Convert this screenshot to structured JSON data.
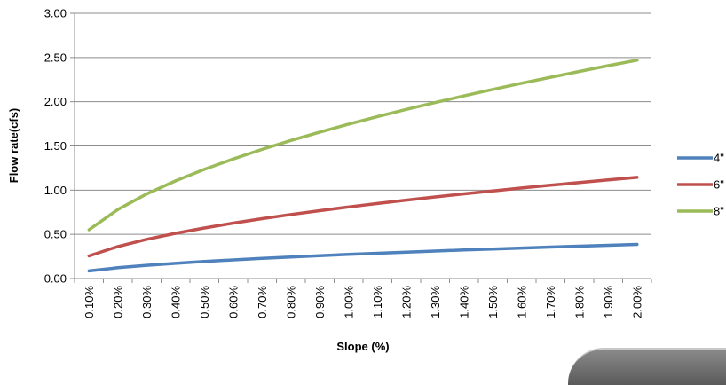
{
  "chart_data": {
    "type": "line",
    "title": "",
    "xlabel": "Slope (%)",
    "ylabel": "Flow rate(cfs)",
    "categories": [
      "0.10%",
      "0.20%",
      "0.30%",
      "0.40%",
      "0.50%",
      "0.60%",
      "0.70%",
      "0.80%",
      "0.90%",
      "1.00%",
      "1.10%",
      "1.20%",
      "1.30%",
      "1.40%",
      "1.50%",
      "1.60%",
      "1.70%",
      "1.80%",
      "1.90%",
      "2.00%"
    ],
    "yticks": [
      "0.00",
      "0.50",
      "1.00",
      "1.50",
      "2.00",
      "2.50",
      "3.00"
    ],
    "ylim": [
      0,
      3
    ],
    "grid": true,
    "legend_position": "right",
    "series": [
      {
        "name": "4\"",
        "color": "#4F81BD",
        "values": [
          0.086,
          0.122,
          0.149,
          0.172,
          0.193,
          0.211,
          0.228,
          0.244,
          0.259,
          0.273,
          0.286,
          0.299,
          0.311,
          0.323,
          0.334,
          0.345,
          0.356,
          0.366,
          0.376,
          0.386
        ]
      },
      {
        "name": "6\"",
        "color": "#C0504D",
        "values": [
          0.256,
          0.362,
          0.443,
          0.512,
          0.572,
          0.627,
          0.677,
          0.724,
          0.768,
          0.81,
          0.849,
          0.887,
          0.923,
          0.958,
          0.991,
          1.024,
          1.056,
          1.086,
          1.116,
          1.145
        ]
      },
      {
        "name": "8\"",
        "color": "#9BBB59",
        "values": [
          0.552,
          0.781,
          0.957,
          1.105,
          1.235,
          1.353,
          1.461,
          1.562,
          1.657,
          1.747,
          1.832,
          1.913,
          1.991,
          2.066,
          2.139,
          2.209,
          2.277,
          2.343,
          2.408,
          2.47
        ]
      }
    ]
  }
}
